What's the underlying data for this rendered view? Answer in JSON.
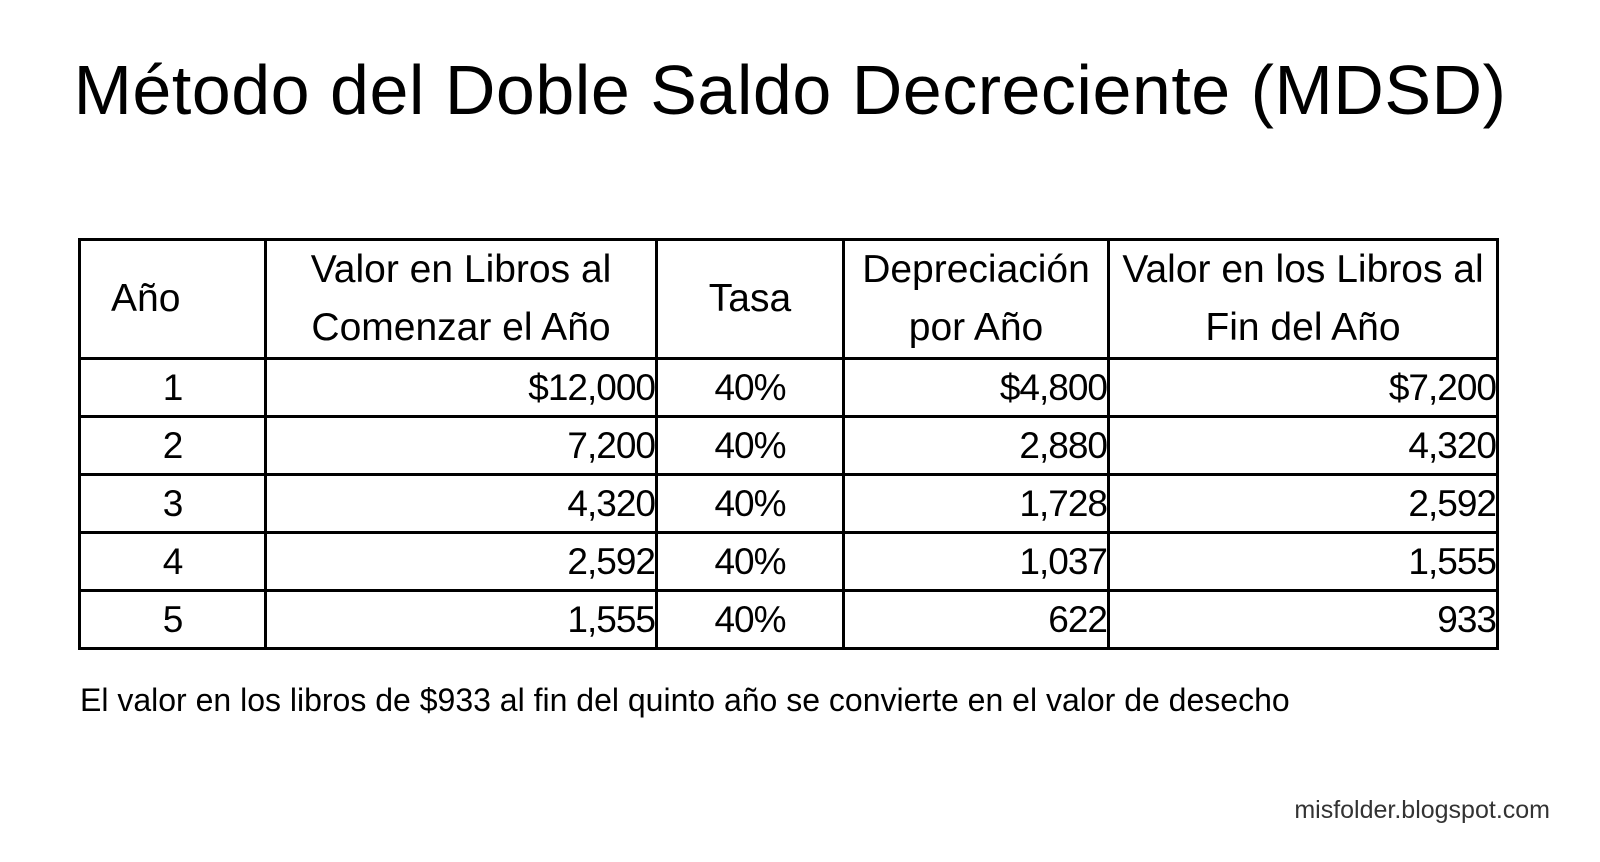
{
  "title": "Método del Doble Saldo Decreciente (MDSD)",
  "table": {
    "headers": {
      "year": "Año",
      "start_value": [
        "Valor en Libros al",
        "Comenzar el Año"
      ],
      "rate": "Tasa",
      "depreciation": [
        "Depreciación",
        "por Año"
      ],
      "end_value": [
        "Valor en los Libros al",
        "Fin del Año"
      ]
    },
    "rows": [
      {
        "year": "1",
        "start_value": "$12,000",
        "rate": "40%",
        "depreciation": "$4,800",
        "end_value": "$7,200"
      },
      {
        "year": "2",
        "start_value": "7,200",
        "rate": "40%",
        "depreciation": "2,880",
        "end_value": "4,320"
      },
      {
        "year": "3",
        "start_value": "4,320",
        "rate": "40%",
        "depreciation": "1,728",
        "end_value": "2,592"
      },
      {
        "year": "4",
        "start_value": "2,592",
        "rate": "40%",
        "depreciation": "1,037",
        "end_value": "1,555"
      },
      {
        "year": "5",
        "start_value": "1,555",
        "rate": "40%",
        "depreciation": "622",
        "end_value": "933"
      }
    ]
  },
  "note": "El valor en los libros de $933 al fin del quinto año se convierte en el valor de desecho",
  "footer": "misfolder.blogspot.com"
}
